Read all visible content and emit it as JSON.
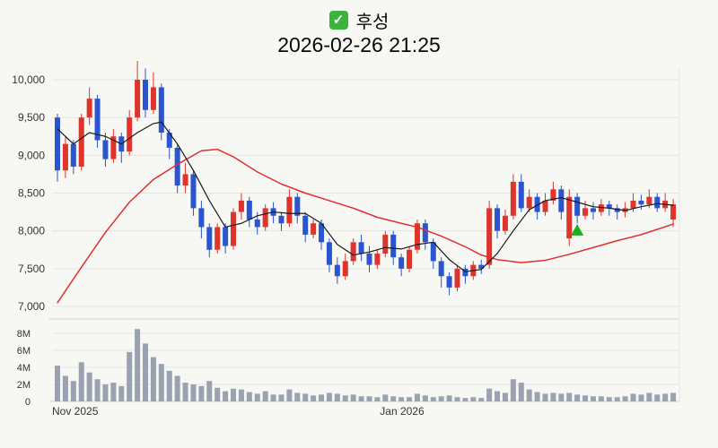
{
  "header": {
    "stock_name": "후성",
    "checkbox_glyph": "✓",
    "timestamp": "2026-02-26 21:25"
  },
  "chart_data": {
    "type": "candlestick_with_volume",
    "title": "후성",
    "subtitle": "2026-02-26 21:25",
    "price_axis": {
      "ticks": [
        10000,
        9500,
        9000,
        8500,
        8000,
        7500,
        7000
      ],
      "labels": [
        "10,000",
        "9,500",
        "9,000",
        "8,500",
        "8,000",
        "7,500",
        "7,000"
      ],
      "range": [
        7000,
        10000
      ]
    },
    "volume_axis": {
      "ticks_millions": [
        8,
        6,
        4,
        2,
        0
      ],
      "labels": [
        "8M",
        "6M",
        "4M",
        "2M",
        "0"
      ],
      "range_millions": [
        0,
        9
      ]
    },
    "x_axis": {
      "labels": [
        {
          "text": "Nov 2025",
          "index": 0
        },
        {
          "text": "Jan 2026",
          "index": 41
        }
      ]
    },
    "colors": {
      "up": "#df342c",
      "down": "#2b55ce",
      "volume": "#9aa1b0",
      "ma_short": "#1a1a1a",
      "ma_long": "#e03131",
      "marker": "#1fae1f",
      "grid": "#e4e4e1",
      "axis_line": "#cfcfcb",
      "tick_text": "#333333"
    },
    "columns": [
      "open",
      "high",
      "low",
      "close",
      "volume_millions"
    ],
    "candles": [
      [
        9500,
        9550,
        8650,
        8800,
        4.2
      ],
      [
        8800,
        9250,
        8700,
        9150,
        3.0
      ],
      [
        9150,
        9200,
        8750,
        8850,
        2.4
      ],
      [
        8850,
        9550,
        8800,
        9500,
        4.6
      ],
      [
        9500,
        9900,
        9400,
        9750,
        3.4
      ],
      [
        9750,
        9800,
        9100,
        9200,
        2.6
      ],
      [
        9200,
        9300,
        8850,
        8950,
        2.0
      ],
      [
        8950,
        9350,
        8900,
        9250,
        2.2
      ],
      [
        9250,
        9300,
        8900,
        9050,
        1.8
      ],
      [
        9050,
        9600,
        9000,
        9500,
        5.8
      ],
      [
        9500,
        10250,
        9450,
        10000,
        8.5
      ],
      [
        10000,
        10150,
        9500,
        9600,
        6.8
      ],
      [
        9600,
        10100,
        9550,
        9900,
        5.2
      ],
      [
        9900,
        9950,
        9200,
        9300,
        4.4
      ],
      [
        9300,
        9350,
        8950,
        9100,
        3.6
      ],
      [
        9100,
        9150,
        8500,
        8600,
        3.0
      ],
      [
        8600,
        8900,
        8500,
        8750,
        2.2
      ],
      [
        8750,
        8800,
        8200,
        8300,
        2.0
      ],
      [
        8300,
        8400,
        7900,
        8050,
        1.8
      ],
      [
        8050,
        8100,
        7650,
        7750,
        2.4
      ],
      [
        7750,
        8100,
        7700,
        8050,
        1.6
      ],
      [
        8050,
        8100,
        7700,
        7800,
        1.2
      ],
      [
        7800,
        8300,
        7750,
        8250,
        1.5
      ],
      [
        8250,
        8500,
        8150,
        8400,
        1.4
      ],
      [
        8400,
        8450,
        8050,
        8150,
        1.1
      ],
      [
        8150,
        8250,
        7950,
        8050,
        0.9
      ],
      [
        8050,
        8350,
        8000,
        8300,
        1.2
      ],
      [
        8300,
        8380,
        8100,
        8200,
        0.8
      ],
      [
        8200,
        8250,
        8000,
        8100,
        0.8
      ],
      [
        8100,
        8550,
        8050,
        8450,
        1.4
      ],
      [
        8450,
        8500,
        8100,
        8200,
        1.0
      ],
      [
        8200,
        8250,
        7850,
        7950,
        0.9
      ],
      [
        7950,
        8150,
        7900,
        8100,
        0.7
      ],
      [
        8100,
        8150,
        7750,
        7850,
        0.8
      ],
      [
        7850,
        7900,
        7450,
        7550,
        1.0
      ],
      [
        7550,
        7650,
        7300,
        7400,
        0.9
      ],
      [
        7400,
        7700,
        7350,
        7600,
        0.7
      ],
      [
        7600,
        7900,
        7550,
        7850,
        0.8
      ],
      [
        7850,
        7950,
        7600,
        7700,
        0.6
      ],
      [
        7700,
        7800,
        7450,
        7550,
        0.6
      ],
      [
        7550,
        7750,
        7500,
        7700,
        0.5
      ],
      [
        7700,
        8000,
        7650,
        7950,
        0.8
      ],
      [
        7950,
        8000,
        7550,
        7650,
        0.6
      ],
      [
        7650,
        7700,
        7400,
        7500,
        0.5
      ],
      [
        7500,
        7800,
        7450,
        7750,
        0.5
      ],
      [
        7750,
        8150,
        7700,
        8100,
        0.9
      ],
      [
        8100,
        8150,
        7750,
        7850,
        0.7
      ],
      [
        7850,
        7900,
        7500,
        7600,
        0.5
      ],
      [
        7600,
        7650,
        7250,
        7400,
        0.6
      ],
      [
        7400,
        7450,
        7150,
        7250,
        0.7
      ],
      [
        7250,
        7550,
        7200,
        7500,
        0.5
      ],
      [
        7500,
        7550,
        7300,
        7400,
        0.4
      ],
      [
        7400,
        7600,
        7350,
        7550,
        0.5
      ],
      [
        7550,
        7620,
        7430,
        7500,
        0.4
      ],
      [
        7550,
        8400,
        7500,
        8300,
        1.5
      ],
      [
        8300,
        8350,
        7900,
        8000,
        1.2
      ],
      [
        8000,
        8280,
        7950,
        8200,
        1.0
      ],
      [
        8200,
        8750,
        8150,
        8650,
        2.6
      ],
      [
        8650,
        8750,
        8250,
        8300,
        2.2
      ],
      [
        8300,
        8550,
        8250,
        8450,
        1.4
      ],
      [
        8450,
        8500,
        8150,
        8250,
        1.1
      ],
      [
        8250,
        8500,
        8200,
        8400,
        0.9
      ],
      [
        8400,
        8650,
        8350,
        8550,
        1.0
      ],
      [
        8550,
        8600,
        8150,
        8250,
        0.9
      ],
      [
        7900,
        8550,
        7800,
        8450,
        1.0
      ],
      [
        8450,
        8500,
        8100,
        8200,
        0.8
      ],
      [
        8200,
        8400,
        8150,
        8300,
        0.7
      ],
      [
        8300,
        8380,
        8150,
        8250,
        0.6
      ],
      [
        8250,
        8420,
        8200,
        8350,
        0.6
      ],
      [
        8350,
        8400,
        8200,
        8300,
        0.5
      ],
      [
        8300,
        8350,
        8150,
        8250,
        0.5
      ],
      [
        8250,
        8380,
        8180,
        8300,
        0.6
      ],
      [
        8300,
        8500,
        8250,
        8400,
        0.9
      ],
      [
        8400,
        8480,
        8280,
        8350,
        0.8
      ],
      [
        8350,
        8550,
        8300,
        8450,
        1.0
      ],
      [
        8450,
        8500,
        8250,
        8300,
        0.8
      ],
      [
        8300,
        8500,
        8250,
        8400,
        0.9
      ],
      [
        8150,
        8420,
        8050,
        8350,
        1.0
      ]
    ],
    "ma_short_points": [
      [
        0,
        9350
      ],
      [
        2,
        9150
      ],
      [
        4,
        9300
      ],
      [
        6,
        9250
      ],
      [
        8,
        9150
      ],
      [
        10,
        9300
      ],
      [
        12,
        9420
      ],
      [
        13,
        9440
      ],
      [
        15,
        9150
      ],
      [
        17,
        8800
      ],
      [
        19,
        8400
      ],
      [
        21,
        8050
      ],
      [
        23,
        8100
      ],
      [
        25,
        8200
      ],
      [
        27,
        8250
      ],
      [
        29,
        8230
      ],
      [
        31,
        8230
      ],
      [
        33,
        8100
      ],
      [
        35,
        7820
      ],
      [
        37,
        7680
      ],
      [
        39,
        7720
      ],
      [
        41,
        7780
      ],
      [
        43,
        7760
      ],
      [
        45,
        7820
      ],
      [
        47,
        7850
      ],
      [
        49,
        7620
      ],
      [
        51,
        7460
      ],
      [
        53,
        7490
      ],
      [
        55,
        7700
      ],
      [
        57,
        8000
      ],
      [
        59,
        8280
      ],
      [
        61,
        8400
      ],
      [
        63,
        8440
      ],
      [
        65,
        8380
      ],
      [
        67,
        8320
      ],
      [
        69,
        8300
      ],
      [
        71,
        8270
      ],
      [
        73,
        8320
      ],
      [
        75,
        8360
      ],
      [
        77,
        8340
      ]
    ],
    "ma_long_points": [
      [
        0,
        7050
      ],
      [
        3,
        7520
      ],
      [
        6,
        7980
      ],
      [
        9,
        8380
      ],
      [
        12,
        8680
      ],
      [
        15,
        8880
      ],
      [
        18,
        9060
      ],
      [
        20,
        9080
      ],
      [
        22,
        8980
      ],
      [
        25,
        8780
      ],
      [
        28,
        8620
      ],
      [
        31,
        8500
      ],
      [
        34,
        8400
      ],
      [
        37,
        8300
      ],
      [
        40,
        8180
      ],
      [
        43,
        8100
      ],
      [
        45,
        8050
      ],
      [
        48,
        7930
      ],
      [
        51,
        7790
      ],
      [
        53,
        7680
      ],
      [
        55,
        7620
      ],
      [
        58,
        7580
      ],
      [
        61,
        7610
      ],
      [
        64,
        7690
      ],
      [
        67,
        7780
      ],
      [
        70,
        7870
      ],
      [
        73,
        7950
      ],
      [
        75,
        8020
      ],
      [
        77,
        8090
      ]
    ],
    "marker": {
      "type": "triangle-up",
      "index": 65,
      "price": 7950
    }
  }
}
